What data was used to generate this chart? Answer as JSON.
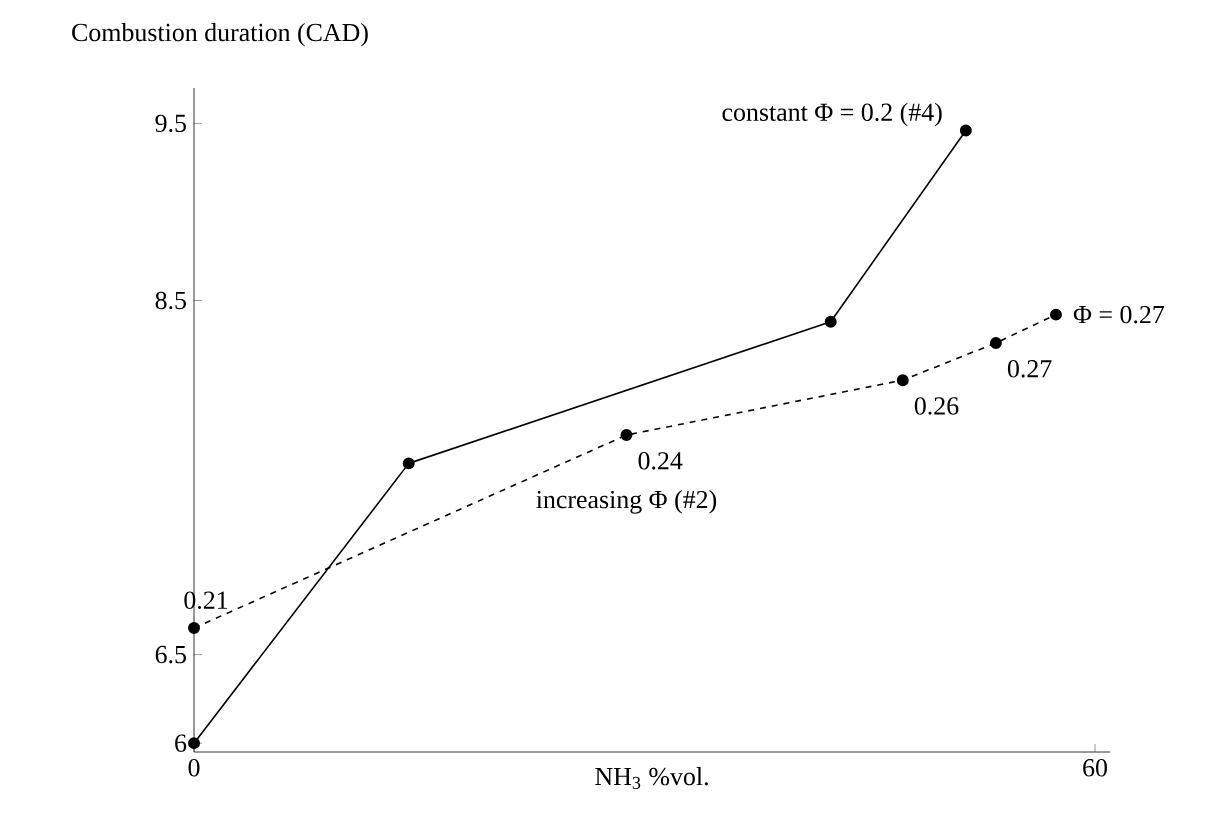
{
  "chart_data": {
    "type": "line",
    "ylabel": "Combustion duration (CAD)",
    "xlabel": "NH$_{3}$ %vol.",
    "xlim": [
      0,
      61
    ],
    "ylim": [
      5.95,
      9.7
    ],
    "xticks": [
      0,
      60
    ],
    "yticks": [
      6,
      6.5,
      8.5,
      9.5
    ],
    "marker": "circle",
    "grid": false,
    "series": [
      {
        "name": "constant Φ = 0.2 (#4)",
        "color": "#000000",
        "line_style": "solid",
        "x": [
          0,
          14.3,
          42.4,
          51.4
        ],
        "values": [
          6,
          7.58,
          8.38,
          9.46
        ]
      },
      {
        "name": "increasing Φ (#2)",
        "color": "#000000",
        "line_style": "dashed",
        "x": [
          0,
          28.8,
          47.2,
          53.4,
          57.4
        ],
        "values": [
          6.65,
          7.74,
          8.05,
          8.26,
          8.42
        ]
      }
    ],
    "annotations": [
      {
        "text": "0.21",
        "x": 0,
        "y": 6.65
      },
      {
        "text": "0.24",
        "x": 28.8,
        "y": 7.74
      },
      {
        "text": "0.26",
        "x": 47.2,
        "y": 8.05
      },
      {
        "text": "0.27",
        "x": 53.4,
        "y": 8.26
      },
      {
        "text": "Φ = 0.27",
        "x": 57.4,
        "y": 8.42
      }
    ]
  }
}
